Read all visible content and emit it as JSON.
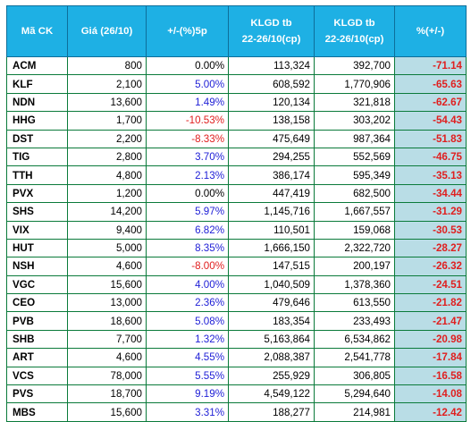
{
  "headers": [
    "Mã CK",
    "Giá (26/10)",
    "+/-(%)5p",
    "KLGD tb|22-26/10(cp)",
    "KLGD tb|22-26/10(cp)",
    "%(+/-)"
  ],
  "rows": [
    {
      "code": "ACM",
      "price": "800",
      "change": "0.00%",
      "vol_avg": "113,324",
      "vol_recent": "392,700",
      "pct": "-71.14"
    },
    {
      "code": "KLF",
      "price": "2,100",
      "change": "5.00%",
      "vol_avg": "608,592",
      "vol_recent": "1,770,906",
      "pct": "-65.63"
    },
    {
      "code": "NDN",
      "price": "13,600",
      "change": "1.49%",
      "vol_avg": "120,134",
      "vol_recent": "321,818",
      "pct": "-62.67"
    },
    {
      "code": "HHG",
      "price": "1,700",
      "change": "-10.53%",
      "vol_avg": "138,158",
      "vol_recent": "303,202",
      "pct": "-54.43"
    },
    {
      "code": "DST",
      "price": "2,200",
      "change": "-8.33%",
      "vol_avg": "475,649",
      "vol_recent": "987,364",
      "pct": "-51.83"
    },
    {
      "code": "TIG",
      "price": "2,800",
      "change": "3.70%",
      "vol_avg": "294,255",
      "vol_recent": "552,569",
      "pct": "-46.75"
    },
    {
      "code": "TTH",
      "price": "4,800",
      "change": "2.13%",
      "vol_avg": "386,174",
      "vol_recent": "595,349",
      "pct": "-35.13"
    },
    {
      "code": "PVX",
      "price": "1,200",
      "change": "0.00%",
      "vol_avg": "447,419",
      "vol_recent": "682,500",
      "pct": "-34.44"
    },
    {
      "code": "SHS",
      "price": "14,200",
      "change": "5.97%",
      "vol_avg": "1,145,716",
      "vol_recent": "1,667,557",
      "pct": "-31.29"
    },
    {
      "code": "VIX",
      "price": "9,400",
      "change": "6.82%",
      "vol_avg": "110,501",
      "vol_recent": "159,068",
      "pct": "-30.53"
    },
    {
      "code": "HUT",
      "price": "5,000",
      "change": "8.35%",
      "vol_avg": "1,666,150",
      "vol_recent": "2,322,720",
      "pct": "-28.27"
    },
    {
      "code": "NSH",
      "price": "4,600",
      "change": "-8.00%",
      "vol_avg": "147,515",
      "vol_recent": "200,197",
      "pct": "-26.32"
    },
    {
      "code": "VGC",
      "price": "15,600",
      "change": "4.00%",
      "vol_avg": "1,040,509",
      "vol_recent": "1,378,360",
      "pct": "-24.51"
    },
    {
      "code": "CEO",
      "price": "13,000",
      "change": "2.36%",
      "vol_avg": "479,646",
      "vol_recent": "613,550",
      "pct": "-21.82"
    },
    {
      "code": "PVB",
      "price": "18,600",
      "change": "5.08%",
      "vol_avg": "183,354",
      "vol_recent": "233,493",
      "pct": "-21.47"
    },
    {
      "code": "SHB",
      "price": "7,700",
      "change": "1.32%",
      "vol_avg": "5,163,864",
      "vol_recent": "6,534,862",
      "pct": "-20.98"
    },
    {
      "code": "ART",
      "price": "4,600",
      "change": "4.55%",
      "vol_avg": "2,088,387",
      "vol_recent": "2,541,778",
      "pct": "-17.84"
    },
    {
      "code": "VCS",
      "price": "78,000",
      "change": "5.55%",
      "vol_avg": "255,929",
      "vol_recent": "306,805",
      "pct": "-16.58"
    },
    {
      "code": "PVS",
      "price": "18,700",
      "change": "9.19%",
      "vol_avg": "4,549,122",
      "vol_recent": "5,294,640",
      "pct": "-14.08"
    },
    {
      "code": "MBS",
      "price": "15,600",
      "change": "3.31%",
      "vol_avg": "188,277",
      "vol_recent": "214,981",
      "pct": "-12.42"
    }
  ],
  "colors": {
    "header_bg": "#1eb0e4",
    "positive": "#1f1fd6",
    "negative": "#e01f1f",
    "pct_bg": "#b9dde6"
  }
}
